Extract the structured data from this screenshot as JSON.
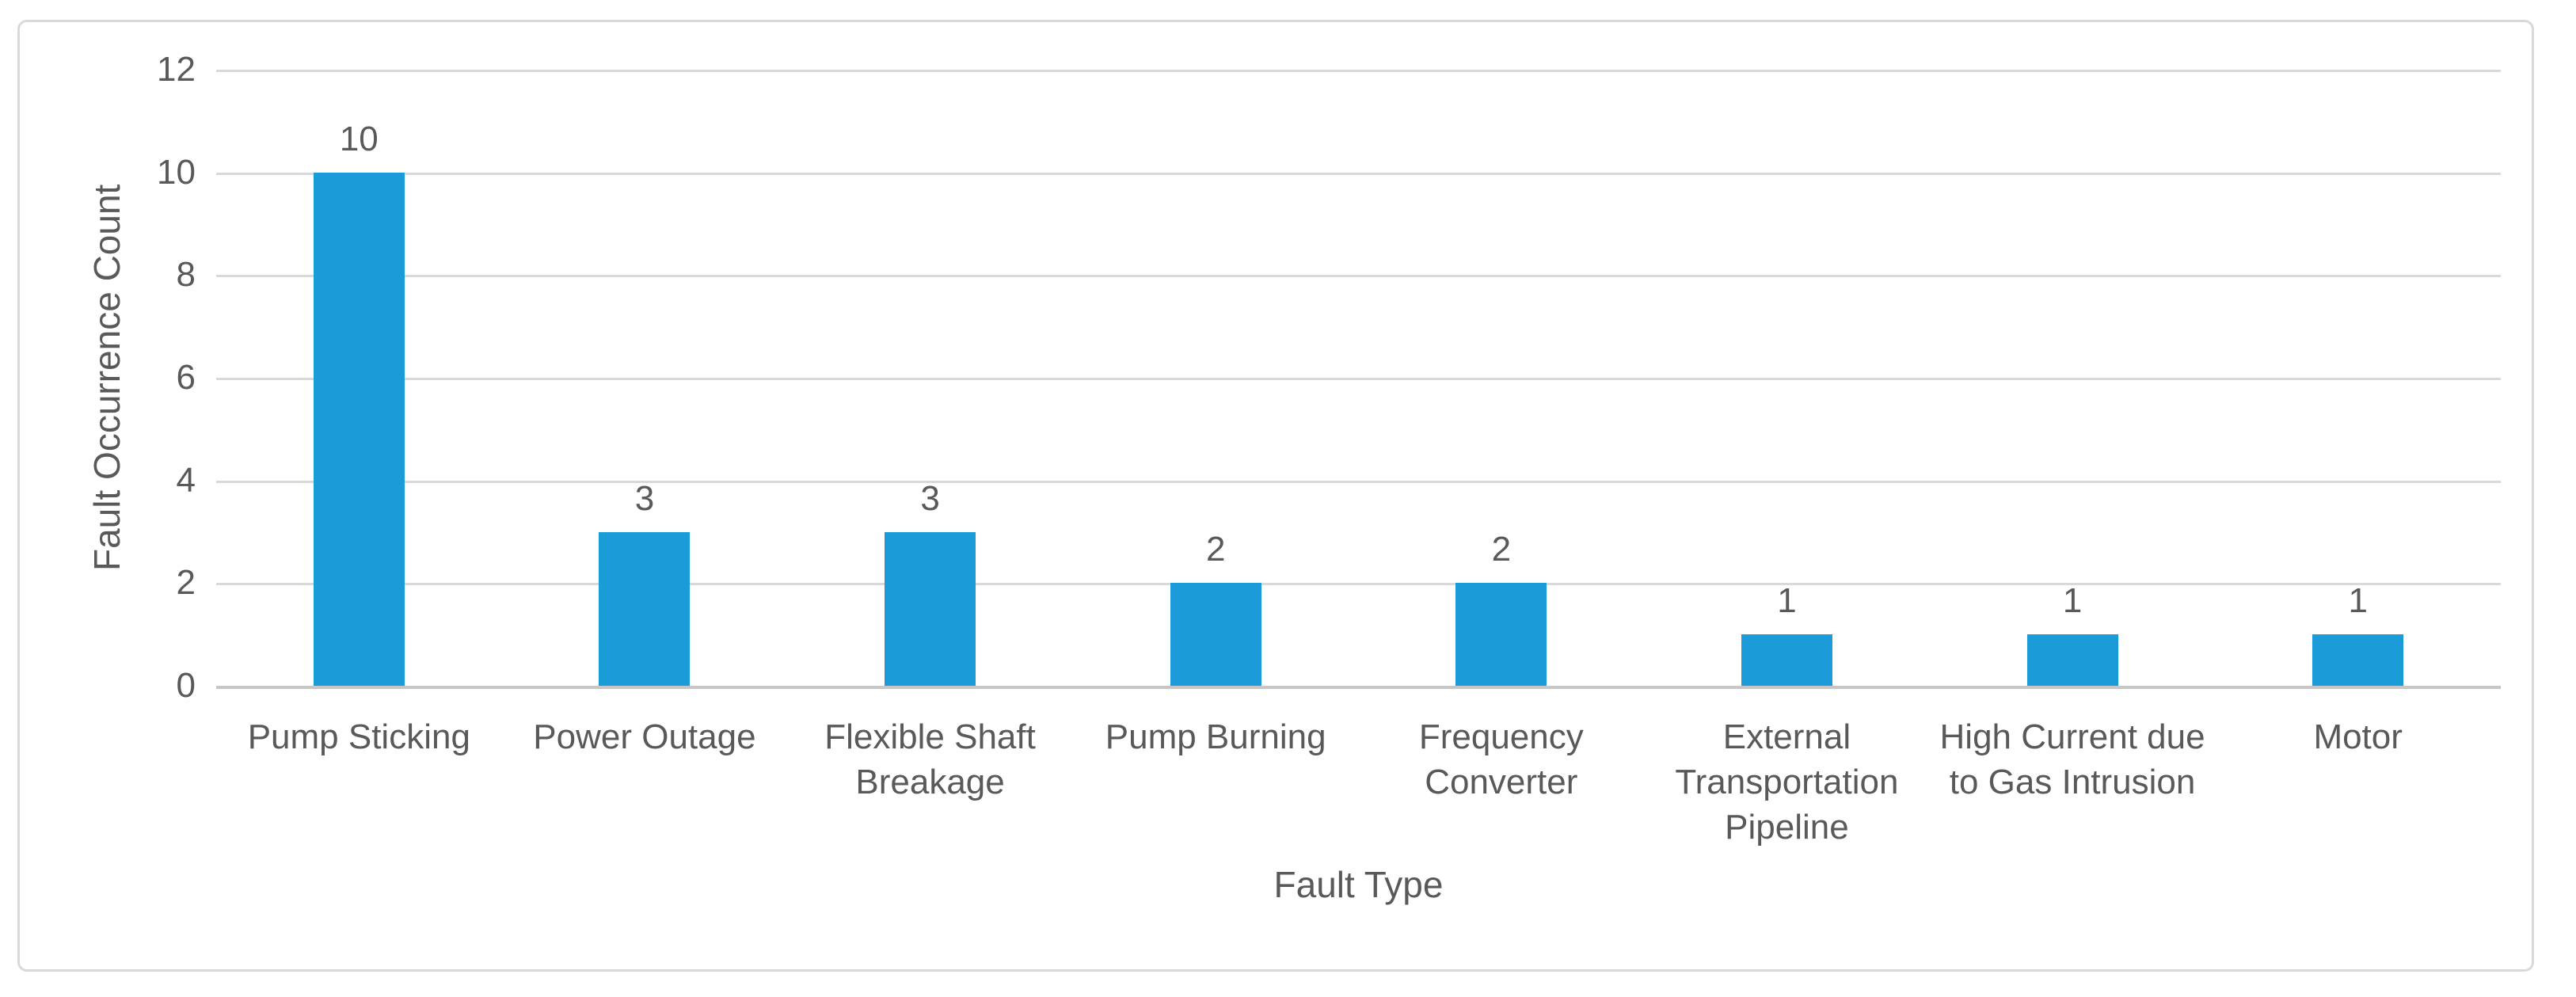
{
  "colors": {
    "bar": "#1B9BD8",
    "gridline": "#D9D9D9",
    "axis_line": "#C6C6C6",
    "frame_border": "#D9D9D9",
    "text": "#595959",
    "background": "#FFFFFF"
  },
  "chart_data": {
    "type": "bar",
    "title": "",
    "categories": [
      "Pump Sticking",
      "Power Outage",
      "Flexible Shaft Breakage",
      "Pump Burning",
      "Frequency Converter",
      "External Transportation Pipeline",
      "High Current due to Gas Intrusion",
      "Motor"
    ],
    "values": [
      10,
      3,
      3,
      2,
      2,
      1,
      1,
      1
    ],
    "data_labels": [
      "10",
      "3",
      "3",
      "2",
      "2",
      "1",
      "1",
      "1"
    ],
    "xlabel": "Fault Type",
    "ylabel": "Fault Occurrence Count",
    "yticks": [
      0,
      2,
      4,
      6,
      8,
      10,
      12
    ],
    "ylim": [
      0,
      12
    ],
    "grid": "horizontal-gridlines-on",
    "legend": "none",
    "bar_color_hex": "#1B9BD8"
  }
}
